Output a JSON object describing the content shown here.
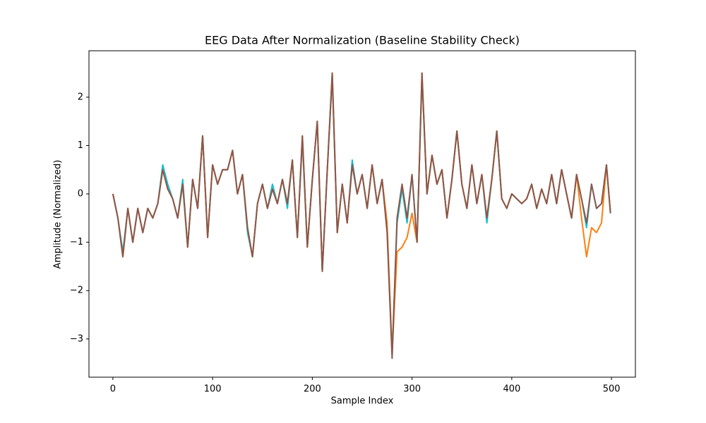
{
  "chart_data": {
    "type": "line",
    "title": "EEG Data After Normalization (Baseline Stability Check)",
    "x_label": "Sample Index",
    "y_label": "Amplitude (Normalized)",
    "x": [
      0,
      5,
      10,
      15,
      20,
      25,
      30,
      35,
      40,
      45,
      50,
      55,
      60,
      65,
      70,
      75,
      80,
      85,
      90,
      95,
      100,
      105,
      110,
      115,
      120,
      125,
      130,
      135,
      140,
      145,
      150,
      155,
      160,
      165,
      170,
      175,
      180,
      185,
      190,
      195,
      200,
      205,
      210,
      215,
      220,
      225,
      230,
      235,
      240,
      245,
      250,
      255,
      260,
      265,
      270,
      275,
      280,
      285,
      290,
      295,
      300,
      305,
      310,
      315,
      320,
      325,
      330,
      335,
      340,
      345,
      350,
      355,
      360,
      365,
      370,
      375,
      380,
      385,
      390,
      395,
      400,
      405,
      410,
      415,
      420,
      425,
      430,
      435,
      440,
      445,
      450,
      455,
      460,
      465,
      470,
      475,
      480,
      485,
      490,
      495,
      499
    ],
    "series": [
      {
        "color": "#17becf",
        "values": [
          0.0,
          -0.5,
          -1.2,
          -0.3,
          -1.0,
          -0.3,
          -0.8,
          -0.3,
          -0.5,
          -0.2,
          0.6,
          0.2,
          -0.1,
          -0.5,
          0.3,
          -1.1,
          0.3,
          -0.3,
          1.2,
          -0.9,
          0.6,
          0.2,
          0.5,
          0.5,
          0.9,
          0.0,
          0.4,
          -0.8,
          -1.3,
          -0.2,
          0.2,
          -0.3,
          0.2,
          -0.2,
          0.3,
          -0.3,
          0.7,
          -0.9,
          1.1,
          -1.1,
          0.3,
          1.5,
          -1.6,
          0.5,
          2.4,
          -0.8,
          0.2,
          -0.6,
          0.7,
          0.0,
          0.4,
          -0.3,
          0.6,
          -0.2,
          0.3,
          -0.7,
          -3.3,
          -0.6,
          0.1,
          -0.6,
          0.4,
          -1.0,
          2.4,
          0.0,
          0.8,
          0.2,
          0.5,
          -0.5,
          0.3,
          1.3,
          0.2,
          -0.3,
          0.6,
          -0.2,
          0.4,
          -0.6,
          0.3,
          1.3,
          -0.1,
          -0.3,
          0.0,
          -0.1,
          -0.2,
          -0.1,
          0.2,
          -0.3,
          0.1,
          -0.2,
          0.4,
          -0.2,
          0.5,
          0.0,
          -0.5,
          0.4,
          -0.1,
          -0.7,
          0.2,
          -0.3,
          -0.2,
          0.6,
          -0.4
        ]
      },
      {
        "color": "#ff7f0e",
        "values": [
          0.0,
          -0.5,
          -1.3,
          -0.3,
          -1.0,
          -0.3,
          -0.8,
          -0.3,
          -0.5,
          -0.2,
          0.5,
          0.1,
          -0.1,
          -0.5,
          0.2,
          -1.1,
          0.3,
          -0.3,
          1.2,
          -0.9,
          0.6,
          0.2,
          0.5,
          0.5,
          0.9,
          0.0,
          0.4,
          -0.7,
          -1.3,
          -0.2,
          0.2,
          -0.3,
          0.1,
          -0.2,
          0.3,
          -0.2,
          0.7,
          -0.9,
          1.2,
          -1.1,
          0.3,
          1.5,
          -1.6,
          0.5,
          2.5,
          -0.8,
          0.2,
          -0.6,
          0.6,
          0.0,
          0.4,
          -0.3,
          0.6,
          -0.2,
          0.3,
          -0.6,
          -3.3,
          -1.2,
          -1.1,
          -0.9,
          -0.4,
          -1.0,
          2.5,
          0.0,
          0.8,
          0.2,
          0.5,
          -0.5,
          0.3,
          1.3,
          0.2,
          -0.3,
          0.6,
          -0.2,
          0.4,
          -0.5,
          0.3,
          1.3,
          -0.1,
          -0.3,
          0.0,
          -0.1,
          -0.2,
          -0.1,
          0.2,
          -0.3,
          0.1,
          -0.2,
          0.4,
          -0.2,
          0.5,
          0.0,
          -0.5,
          0.4,
          -0.5,
          -1.3,
          -0.7,
          -0.8,
          -0.6,
          0.6,
          -0.4
        ]
      },
      {
        "color": "#8c564b",
        "values": [
          0.0,
          -0.5,
          -1.3,
          -0.3,
          -1.0,
          -0.3,
          -0.8,
          -0.3,
          -0.5,
          -0.2,
          0.5,
          0.1,
          -0.1,
          -0.5,
          0.2,
          -1.1,
          0.3,
          -0.3,
          1.2,
          -0.9,
          0.6,
          0.2,
          0.5,
          0.5,
          0.9,
          0.0,
          0.4,
          -0.7,
          -1.3,
          -0.2,
          0.2,
          -0.3,
          0.1,
          -0.2,
          0.3,
          -0.2,
          0.7,
          -0.9,
          1.2,
          -1.1,
          0.3,
          1.5,
          -1.6,
          0.5,
          2.5,
          -0.8,
          0.2,
          -0.6,
          0.6,
          0.0,
          0.4,
          -0.3,
          0.6,
          -0.2,
          0.3,
          -0.8,
          -3.4,
          -0.5,
          0.2,
          -0.5,
          0.4,
          -1.0,
          2.5,
          0.0,
          0.8,
          0.2,
          0.5,
          -0.5,
          0.3,
          1.3,
          0.2,
          -0.3,
          0.6,
          -0.2,
          0.4,
          -0.5,
          0.3,
          1.3,
          -0.1,
          -0.3,
          0.0,
          -0.1,
          -0.2,
          -0.1,
          0.2,
          -0.3,
          0.1,
          -0.2,
          0.4,
          -0.2,
          0.5,
          0.0,
          -0.5,
          0.4,
          -0.1,
          -0.6,
          0.2,
          -0.3,
          -0.2,
          0.6,
          -0.4
        ]
      }
    ],
    "xlim": [
      -24,
      524
    ],
    "ylim": [
      -3.79,
      2.96
    ],
    "xticks": [
      0,
      100,
      200,
      300,
      400,
      500
    ],
    "yticks": [
      {
        "value": -3,
        "label": "−3"
      },
      {
        "value": -2,
        "label": "−2"
      },
      {
        "value": -1,
        "label": "−1"
      },
      0,
      1,
      2
    ],
    "grid": false
  }
}
